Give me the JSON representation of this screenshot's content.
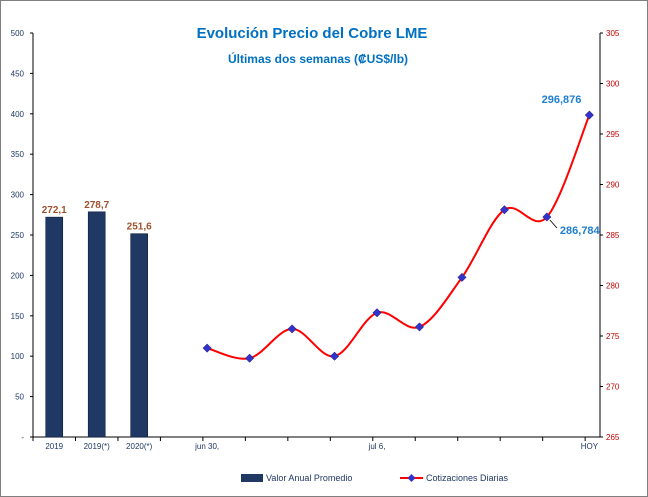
{
  "chart_data": {
    "type": "bar+line",
    "title": "Evolución Precio del Cobre LME",
    "subtitle": "Últimas dos semanas (₡US$/lb)",
    "left_axis": {
      "ylim": [
        0,
        500
      ],
      "ticks": [
        "-",
        "50",
        "100",
        "150",
        "200",
        "250",
        "300",
        "350",
        "400",
        "450",
        "500"
      ]
    },
    "right_axis": {
      "ylim": [
        265,
        305
      ],
      "ticks": [
        "265",
        "270",
        "275",
        "280",
        "285",
        "290",
        "295",
        "300",
        "305"
      ]
    },
    "bars": {
      "name": "Valor Anual Promedio",
      "color": "#1f3864",
      "categories": [
        "2019",
        "2019(*)",
        "2020(*)"
      ],
      "values": [
        272.1,
        278.7,
        251.6
      ],
      "labels": [
        "272,1",
        "278,7",
        "251,6"
      ]
    },
    "line": {
      "name": "Cotizaciones Diarias",
      "line_color": "#ff0000",
      "marker_color": "#3333cc",
      "values": [
        273.8,
        272.8,
        275.7,
        273.0,
        277.3,
        275.9,
        280.8,
        287.5,
        286.784,
        296.876
      ],
      "x_tick_labels": [
        "jun 30,",
        "",
        "",
        "",
        "jul 6,",
        "",
        "",
        "",
        "",
        "HOY"
      ],
      "callouts": [
        {
          "index": 9,
          "label": "296,876"
        },
        {
          "index": 8,
          "label": "286,784"
        }
      ]
    },
    "legend": {
      "position": "bottom",
      "entries": [
        "Valor Anual Promedio",
        "Cotizaciones Diarias"
      ]
    },
    "grid": false
  }
}
